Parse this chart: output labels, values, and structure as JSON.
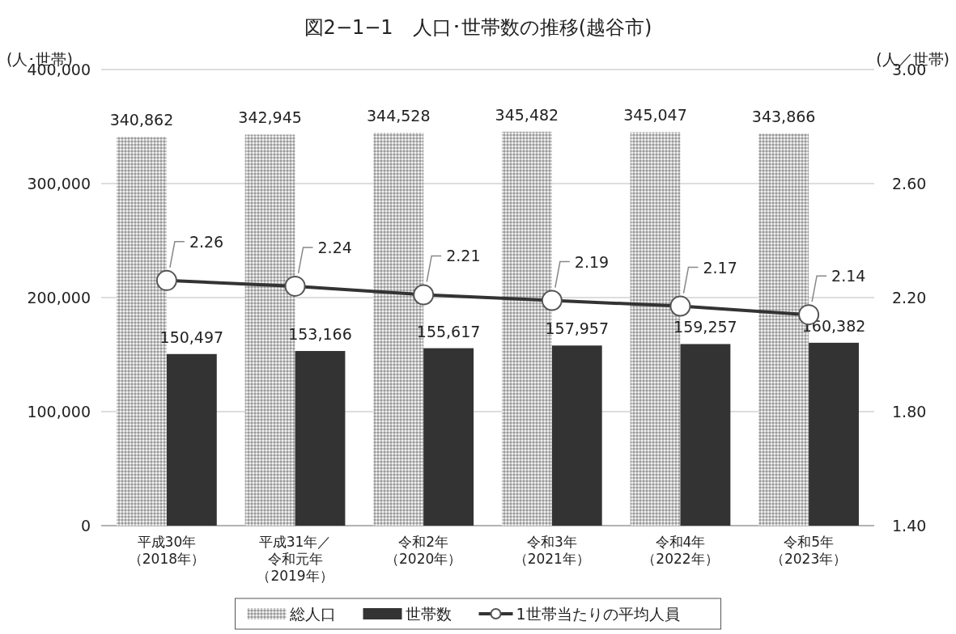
{
  "chart_data": {
    "type": "bar",
    "title": "図2−1−1　人口･世帯数の推移(越谷市)",
    "ylabel": "(人･世帯)",
    "y2label": "(人／世帯)",
    "categories": [
      "平成30年（2018年）",
      "平成31年／令和元年（2019年）",
      "令和2年（2020年）",
      "令和3年（2021年）",
      "令和4年（2022年）",
      "令和5年（2023年）"
    ],
    "series": [
      {
        "name": "総人口",
        "color": "#c4c4c4",
        "values": [
          340862,
          342945,
          344528,
          345482,
          345047,
          343866
        ],
        "value_labels": [
          "340,862",
          "342,945",
          "344,528",
          "345,482",
          "345,047",
          "343,866"
        ]
      },
      {
        "name": "世帯数",
        "color": "#333333",
        "values": [
          150497,
          153166,
          155617,
          157957,
          159257,
          160382
        ],
        "value_labels": [
          "150,497",
          "153,166",
          "155,617",
          "157,957",
          "159,257",
          "160,382"
        ]
      },
      {
        "name": "1世帯当たりの平均人員",
        "type": "line",
        "axis": "y2",
        "color": "#333333",
        "marker": "circle",
        "values": [
          2.26,
          2.24,
          2.21,
          2.19,
          2.17,
          2.14
        ],
        "value_labels": [
          "2.26",
          "2.24",
          "2.21",
          "2.19",
          "2.17",
          "2.14"
        ]
      }
    ],
    "ylim": [
      0,
      400000
    ],
    "yticks": [
      {
        "value": 0,
        "label": "0"
      },
      {
        "value": 100000,
        "label": "100,000"
      },
      {
        "value": 200000,
        "label": "200,000"
      },
      {
        "value": 300000,
        "label": "300,000"
      },
      {
        "value": 400000,
        "label": "400,000"
      }
    ],
    "y2lim": [
      1.4,
      3.0
    ],
    "y2ticks": [
      {
        "value": 1.4,
        "label": "1.40"
      },
      {
        "value": 1.8,
        "label": "1.80"
      },
      {
        "value": 2.2,
        "label": "2.20"
      },
      {
        "value": 2.6,
        "label": "2.60"
      },
      {
        "value": 3.0,
        "label": "3.00"
      }
    ],
    "grid": "y",
    "legend": "bottom"
  }
}
